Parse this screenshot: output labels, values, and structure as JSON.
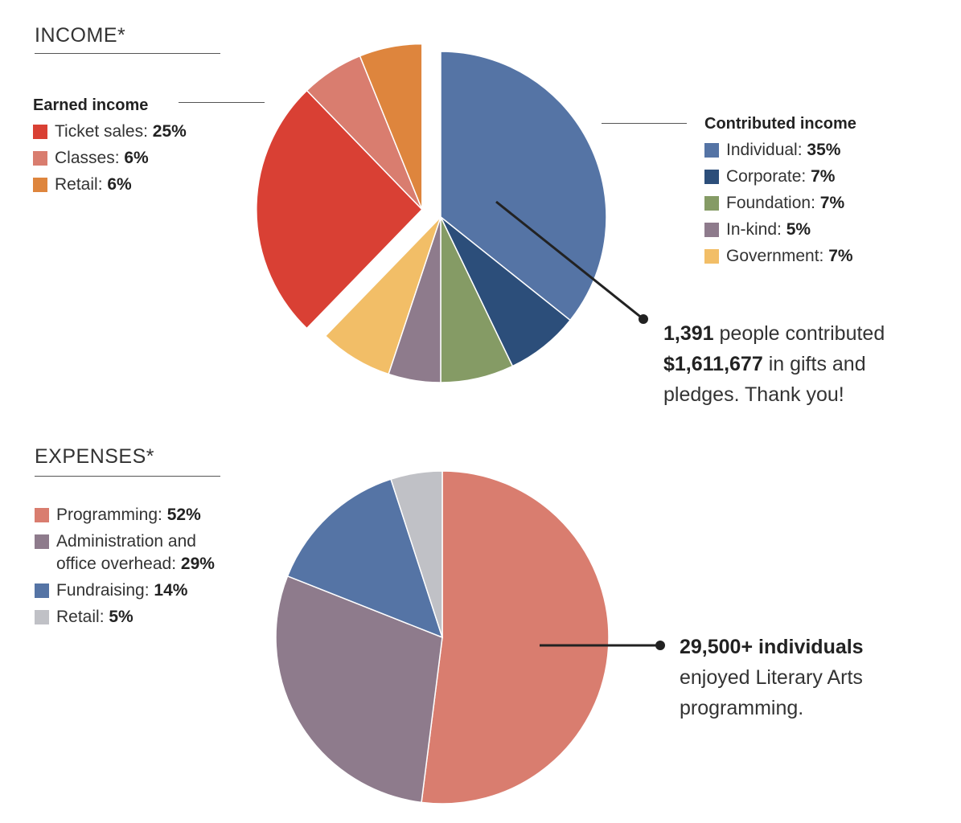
{
  "income": {
    "title": "INCOME*",
    "earned": {
      "heading": "Earned income",
      "items": [
        {
          "label": "Ticket sales:",
          "value": "25%",
          "color": "#d94034"
        },
        {
          "label": "Classes:",
          "value": "6%",
          "color": "#d97d6f"
        },
        {
          "label": "Retail:",
          "value": "6%",
          "color": "#de853d"
        }
      ]
    },
    "contributed": {
      "heading": "Contributed income",
      "items": [
        {
          "label": "Individual:",
          "value": "35%",
          "color": "#5574a5"
        },
        {
          "label": "Corporate:",
          "value": "7%",
          "color": "#2c4e7a"
        },
        {
          "label": "Foundation:",
          "value": "7%",
          "color": "#859b65"
        },
        {
          "label": "In-kind:",
          "value": "5%",
          "color": "#8e7b8c"
        },
        {
          "label": "Government:",
          "value": "7%",
          "color": "#f2be67"
        }
      ]
    },
    "callout": {
      "line1_bold": "1,391",
      "line1_rest": " people contributed",
      "line2_bold": "$1,611,677",
      "line2_rest": " in gifts and",
      "line3": "pledges. Thank you!"
    }
  },
  "expenses": {
    "title": "EXPENSES*",
    "items": [
      {
        "label": "Programming:",
        "value": "52%",
        "color": "#d97d6f"
      },
      {
        "label": "Administration and\noffice overhead:",
        "value": "29%",
        "color": "#8e7b8c"
      },
      {
        "label": "Fundraising:",
        "value": "14%",
        "color": "#5574a5"
      },
      {
        "label": "Retail:",
        "value": "5%",
        "color": "#c0c1c6"
      }
    ],
    "callout": {
      "line1_bold": "29,500+ individuals",
      "line2": "enjoyed Literary Arts",
      "line3": "programming."
    }
  },
  "chart_data": [
    {
      "type": "pie",
      "title": "INCOME*",
      "exploded_group": "Earned income",
      "slices": [
        {
          "name": "Individual",
          "value": 35,
          "group": "Contributed income",
          "color": "#5574a5"
        },
        {
          "name": "Corporate",
          "value": 7,
          "group": "Contributed income",
          "color": "#2c4e7a"
        },
        {
          "name": "Foundation",
          "value": 7,
          "group": "Contributed income",
          "color": "#859b65"
        },
        {
          "name": "In-kind",
          "value": 5,
          "group": "Contributed income",
          "color": "#8e7b8c"
        },
        {
          "name": "Government",
          "value": 7,
          "group": "Contributed income",
          "color": "#f2be67"
        },
        {
          "name": "Ticket sales",
          "value": 25,
          "group": "Earned income",
          "color": "#d94034"
        },
        {
          "name": "Classes",
          "value": 6,
          "group": "Earned income",
          "color": "#d97d6f"
        },
        {
          "name": "Retail",
          "value": 6,
          "group": "Earned income",
          "color": "#de853d"
        }
      ]
    },
    {
      "type": "pie",
      "title": "EXPENSES*",
      "slices": [
        {
          "name": "Programming",
          "value": 52,
          "color": "#d97d6f"
        },
        {
          "name": "Administration and office overhead",
          "value": 29,
          "color": "#8e7b8c"
        },
        {
          "name": "Fundraising",
          "value": 14,
          "color": "#5574a5"
        },
        {
          "name": "Retail",
          "value": 5,
          "color": "#c0c1c6"
        }
      ]
    }
  ]
}
